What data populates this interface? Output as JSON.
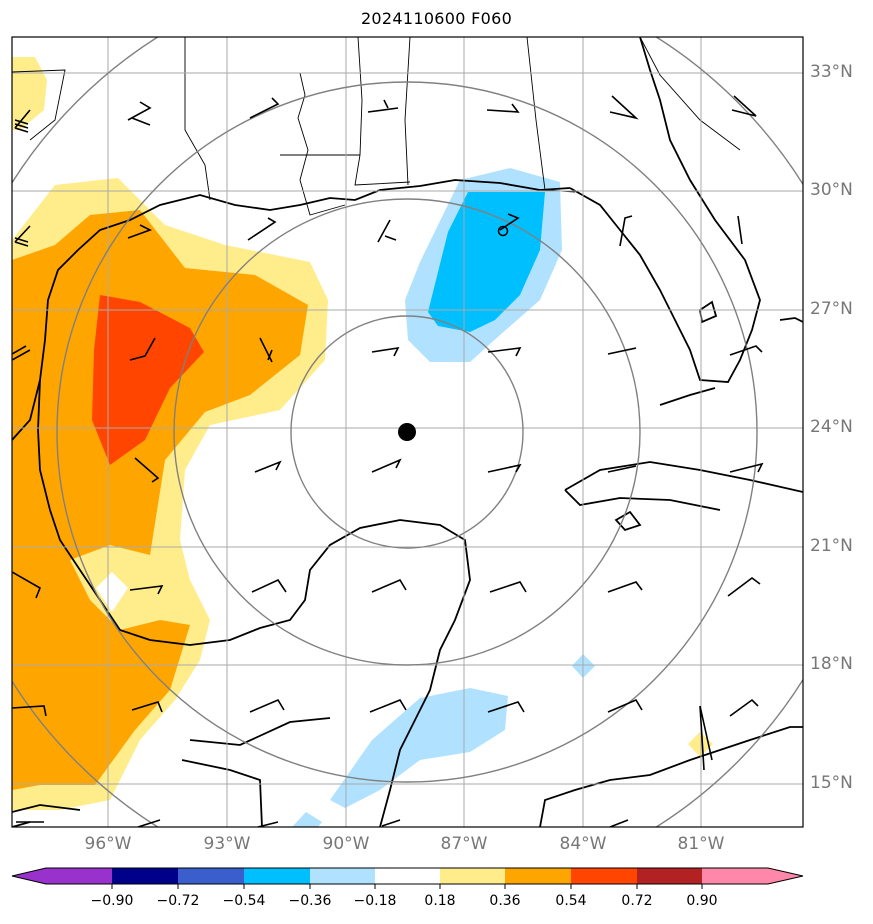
{
  "title": "2024110600 F060",
  "latitude_labels": [
    "33°N",
    "30°N",
    "27°N",
    "24°N",
    "21°N",
    "18°N",
    "15°N"
  ],
  "longitude_labels": [
    "96°W",
    "93°W",
    "90°W",
    "87°W",
    "84°W",
    "81°W"
  ],
  "colorbar": {
    "ticks": [
      "−0.90",
      "−0.72",
      "−0.54",
      "−0.36",
      "−0.18",
      "0.18",
      "0.36",
      "0.54",
      "0.72",
      "0.90"
    ],
    "colors": [
      "#9932cc",
      "#00008b",
      "#3a5fcd",
      "#00bfff",
      "#b0e2ff",
      "#ffffff",
      "#ffec8b",
      "#ffa500",
      "#ff4500",
      "#b22222",
      "#ff88aa"
    ]
  },
  "center_marker": {
    "lon": -88.5,
    "lat": 23.9
  }
}
